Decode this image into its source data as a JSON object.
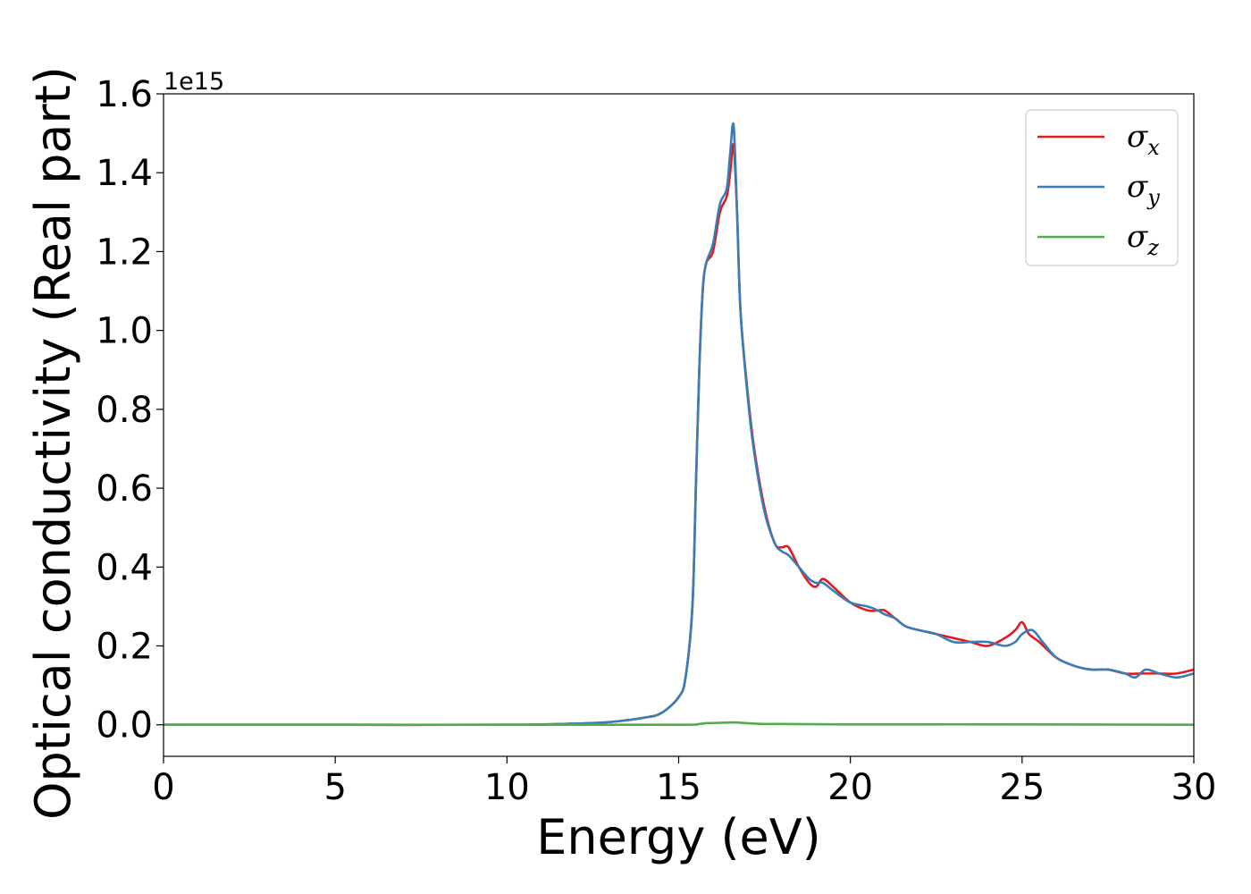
{
  "chart_data": {
    "type": "line",
    "xlabel": "Energy (eV)",
    "ylabel": "Optical conductivity (Real part)",
    "y_offset_label": "1e15",
    "xlim": [
      0,
      30
    ],
    "ylim": [
      -0.08,
      1.6
    ],
    "y_scale_factor": 1000000000000000.0,
    "x_ticks": [
      0,
      5,
      10,
      15,
      20,
      25,
      30
    ],
    "x_tick_labels": [
      "0",
      "5",
      "10",
      "15",
      "20",
      "25",
      "30"
    ],
    "y_ticks": [
      0.0,
      0.2,
      0.4,
      0.6,
      0.8,
      1.0,
      1.2,
      1.4,
      1.6
    ],
    "y_tick_labels": [
      "0.0",
      "0.2",
      "0.4",
      "0.6",
      "0.8",
      "1.0",
      "1.2",
      "1.4",
      "1.6"
    ],
    "grid": false,
    "legend_position": "top-right",
    "series": [
      {
        "name": "σx",
        "name_base": "σ",
        "name_sub": "x",
        "color": "#e41a1c",
        "x": [
          0,
          5,
          10,
          12,
          13,
          14,
          14.5,
          15,
          15.2,
          15.4,
          15.5,
          15.6,
          15.7,
          15.8,
          16.0,
          16.2,
          16.4,
          16.5,
          16.6,
          16.7,
          16.8,
          17.0,
          17.2,
          17.5,
          17.8,
          18.0,
          18.2,
          18.5,
          18.8,
          19.0,
          19.2,
          19.5,
          20.0,
          20.5,
          20.8,
          21.0,
          21.3,
          21.6,
          22.0,
          22.5,
          23.0,
          23.5,
          24.0,
          24.5,
          24.8,
          25.0,
          25.2,
          25.5,
          26.0,
          26.5,
          27.0,
          27.5,
          28.0,
          28.5,
          29.0,
          29.5,
          30.0
        ],
        "y": [
          0.0,
          0.0,
          0.0,
          0.003,
          0.007,
          0.018,
          0.03,
          0.07,
          0.12,
          0.3,
          0.6,
          0.9,
          1.1,
          1.17,
          1.2,
          1.3,
          1.34,
          1.4,
          1.47,
          1.3,
          1.05,
          0.85,
          0.7,
          0.55,
          0.46,
          0.45,
          0.45,
          0.4,
          0.36,
          0.35,
          0.37,
          0.35,
          0.31,
          0.29,
          0.29,
          0.29,
          0.27,
          0.25,
          0.24,
          0.23,
          0.22,
          0.21,
          0.2,
          0.22,
          0.24,
          0.26,
          0.23,
          0.21,
          0.17,
          0.15,
          0.14,
          0.14,
          0.13,
          0.13,
          0.13,
          0.13,
          0.14
        ]
      },
      {
        "name": "σy",
        "name_base": "σ",
        "name_sub": "y",
        "color": "#377eb8",
        "x": [
          0,
          5,
          10,
          12,
          13,
          14,
          14.5,
          15,
          15.2,
          15.4,
          15.5,
          15.6,
          15.7,
          15.8,
          16.0,
          16.2,
          16.4,
          16.5,
          16.6,
          16.7,
          16.8,
          17.0,
          17.2,
          17.5,
          17.8,
          18.0,
          18.2,
          18.5,
          18.8,
          19.0,
          19.2,
          19.5,
          20.0,
          20.5,
          20.8,
          21.0,
          21.3,
          21.6,
          22.0,
          22.5,
          23.0,
          23.5,
          24.0,
          24.5,
          24.8,
          25.0,
          25.3,
          25.6,
          26.0,
          26.5,
          27.0,
          27.5,
          28.0,
          28.3,
          28.6,
          29.0,
          29.5,
          30.0
        ],
        "y": [
          0.0,
          0.0,
          0.0,
          0.003,
          0.007,
          0.018,
          0.03,
          0.07,
          0.12,
          0.3,
          0.6,
          0.9,
          1.1,
          1.17,
          1.22,
          1.32,
          1.36,
          1.45,
          1.52,
          1.3,
          1.05,
          0.84,
          0.69,
          0.54,
          0.46,
          0.44,
          0.43,
          0.4,
          0.37,
          0.36,
          0.36,
          0.34,
          0.31,
          0.3,
          0.29,
          0.28,
          0.27,
          0.25,
          0.24,
          0.23,
          0.21,
          0.21,
          0.21,
          0.2,
          0.21,
          0.23,
          0.24,
          0.21,
          0.17,
          0.15,
          0.14,
          0.14,
          0.13,
          0.12,
          0.14,
          0.13,
          0.12,
          0.13
        ]
      },
      {
        "name": "σz",
        "name_base": "σ",
        "name_sub": "z",
        "color": "#4daf4a",
        "x": [
          0,
          5,
          10,
          15,
          15.5,
          15.8,
          16.2,
          16.6,
          17.0,
          17.5,
          18.0,
          20.0,
          25.0,
          30.0
        ],
        "y": [
          0.0,
          0.0,
          0.0,
          0.0,
          0.001,
          0.004,
          0.005,
          0.006,
          0.004,
          0.002,
          0.002,
          0.001,
          0.001,
          0.0
        ]
      }
    ]
  }
}
